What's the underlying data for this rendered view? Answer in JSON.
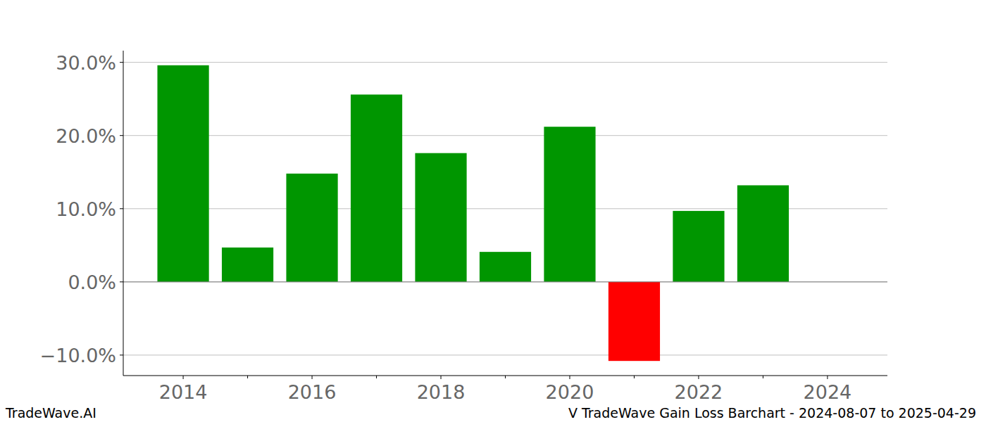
{
  "chart_data": {
    "type": "bar",
    "categories": [
      2014,
      2015,
      2016,
      2017,
      2018,
      2019,
      2020,
      2021,
      2022,
      2023,
      2024
    ],
    "values": [
      29.6,
      4.7,
      14.8,
      25.6,
      17.6,
      4.1,
      21.2,
      -10.8,
      9.7,
      13.2,
      0
    ],
    "colors": [
      "#009600",
      "#009600",
      "#009600",
      "#009600",
      "#009600",
      "#009600",
      "#009600",
      "#ff0000",
      "#009600",
      "#009600",
      "#009600"
    ],
    "xlim": [
      2013.07,
      2024.93
    ],
    "xticks": [
      2014,
      2016,
      2018,
      2020,
      2022,
      2024
    ],
    "ylim": [
      -12.8,
      31.6
    ],
    "yticks": [
      {
        "value": -10,
        "label": "−10.0%"
      },
      {
        "value": 0,
        "label": "0.0%"
      },
      {
        "value": 10,
        "label": "10.0%"
      },
      {
        "value": 20,
        "label": "20.0%"
      },
      {
        "value": 30,
        "label": "30.0%"
      }
    ],
    "grid": true,
    "annotations": [
      "TradeWave.AI",
      "V TradeWave Gain Loss Barchart - 2024-08-07 to 2025-04-29"
    ]
  }
}
